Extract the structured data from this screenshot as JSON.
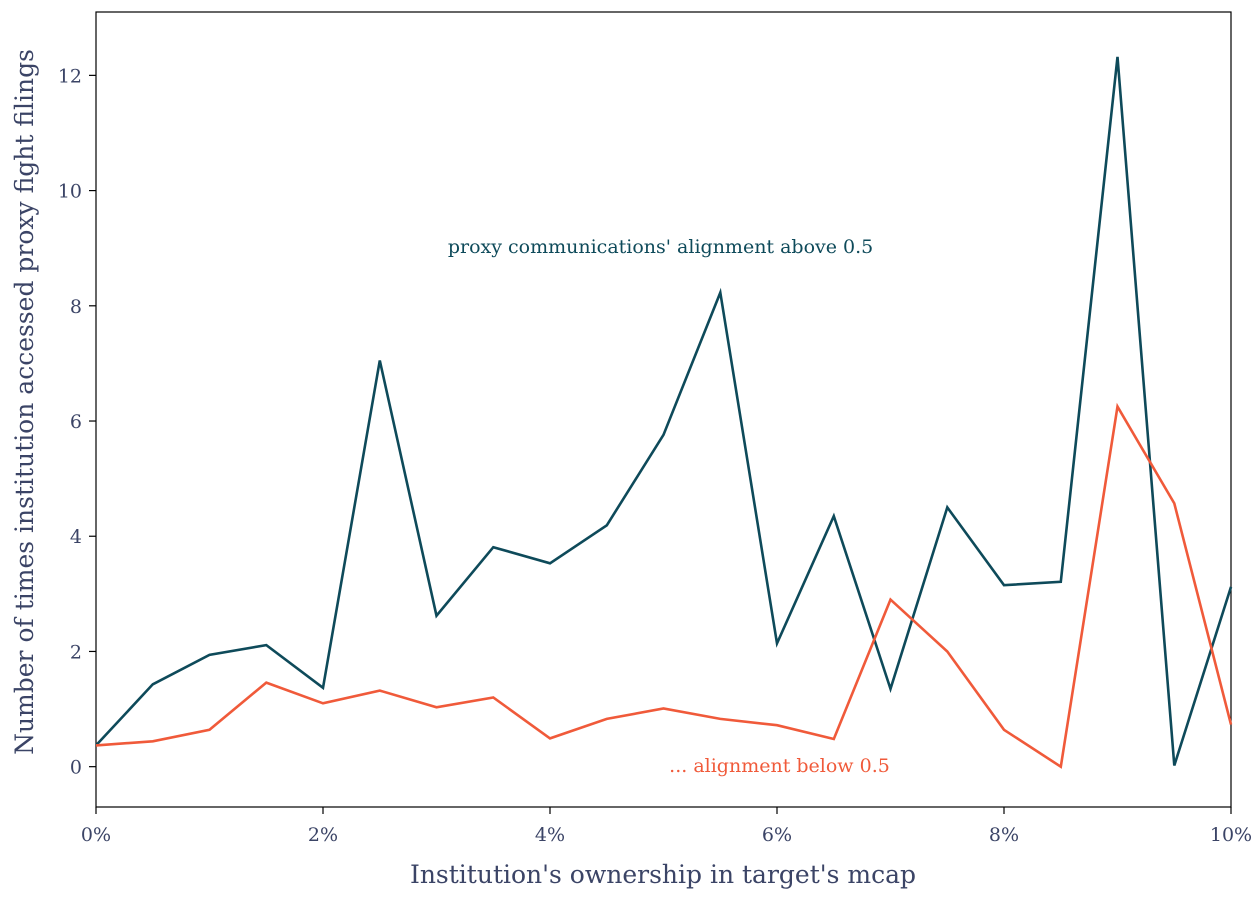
{
  "chart_data": {
    "type": "line",
    "xlabel": "Institution's ownership in target's mcap",
    "ylabel": "Number of times institution accessed proxy fight filings",
    "xlim": [
      0,
      10
    ],
    "ylim": [
      -0.7,
      13.1
    ],
    "x_ticks": [
      0,
      2,
      4,
      6,
      8,
      10
    ],
    "x_tick_labels": [
      "0%",
      "2%",
      "4%",
      "6%",
      "8%",
      "10%"
    ],
    "y_ticks": [
      0,
      2,
      4,
      6,
      8,
      10,
      12
    ],
    "y_tick_labels": [
      "0",
      "2",
      "4",
      "6",
      "8",
      "10",
      "12"
    ],
    "grid": false,
    "legend": "none",
    "x": [
      0,
      0.5,
      1,
      1.5,
      2,
      2.5,
      3,
      3.5,
      4,
      4.5,
      5,
      5.5,
      6,
      6.5,
      7,
      7.5,
      8,
      8.5,
      9,
      9.5,
      10
    ],
    "series": [
      {
        "color": "#0e4a5a",
        "values": [
          0.37,
          1.43,
          1.94,
          2.11,
          1.37,
          7.05,
          2.62,
          3.81,
          3.53,
          4.19,
          5.76,
          8.23,
          2.14,
          4.35,
          1.35,
          4.5,
          3.15,
          3.21,
          12.32,
          0.02,
          3.12
        ]
      },
      {
        "color": "#f05a3a",
        "values": [
          0.37,
          0.44,
          0.64,
          1.46,
          1.1,
          1.32,
          1.03,
          1.2,
          0.49,
          0.83,
          1.01,
          0.83,
          0.72,
          0.48,
          2.9,
          2.0,
          0.64,
          0.0,
          6.25,
          4.57,
          0.73
        ]
      }
    ],
    "annotations": [
      {
        "text": "proxy communications' alignment above 0.5",
        "color": "#0e4a5a",
        "x": 3.1,
        "y": 8.92
      },
      {
        "text": "... alignment below 0.5",
        "color": "#f05a3a",
        "x": 5.05,
        "y": -0.09
      }
    ]
  }
}
